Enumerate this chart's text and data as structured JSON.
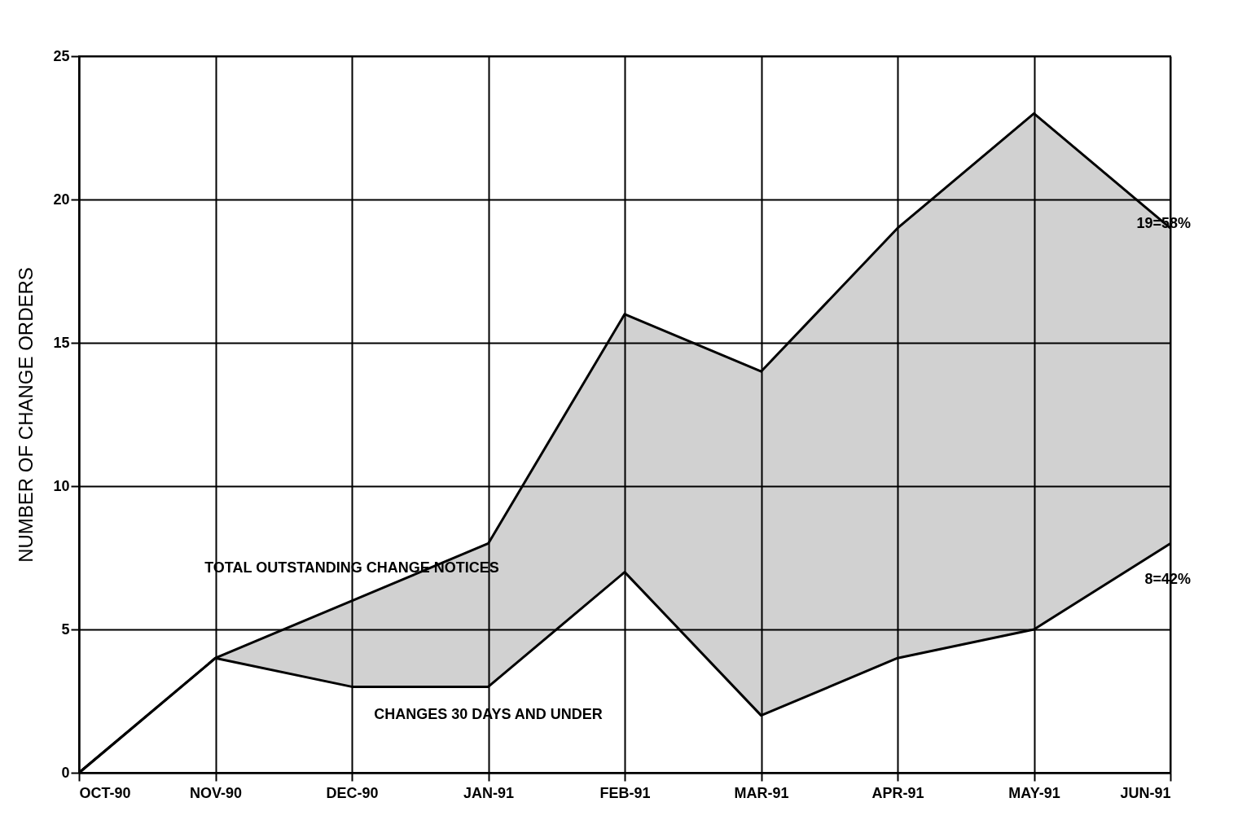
{
  "chart_data": {
    "type": "line",
    "ylabel": "NUMBER OF CHANGE ORDERS",
    "categories": [
      "OCT-90",
      "NOV-90",
      "DEC-90",
      "JAN-91",
      "FEB-91",
      "MAR-91",
      "APR-91",
      "MAY-91",
      "JUN-91"
    ],
    "series": [
      {
        "name": "TOTAL OUTSTANDING CHANGE NOTICES",
        "color": "#000000",
        "values": [
          0,
          4,
          6,
          8,
          16,
          14,
          19,
          23,
          19
        ],
        "lower": [
          0,
          4,
          3,
          3,
          7,
          2,
          4,
          5,
          8
        ],
        "upper": [
          0,
          4,
          6,
          8,
          16,
          14,
          19,
          23,
          19
        ]
      },
      {
        "name": "CHANGES 30 DAYS AND UNDER",
        "color": "#000000",
        "values": [
          0,
          4,
          3,
          3,
          7,
          2,
          4,
          5,
          8
        ]
      }
    ],
    "annotations": [
      {
        "text": "19=58%",
        "x": "JUN-91",
        "y": 19
      },
      {
        "text": "8=42%",
        "x": "JUN-91",
        "y": 8
      }
    ],
    "ylim": [
      0,
      25
    ],
    "yticks": [
      0,
      5,
      10,
      15,
      20,
      25
    ],
    "grid": true,
    "marker": "none",
    "line_style": "solid"
  }
}
